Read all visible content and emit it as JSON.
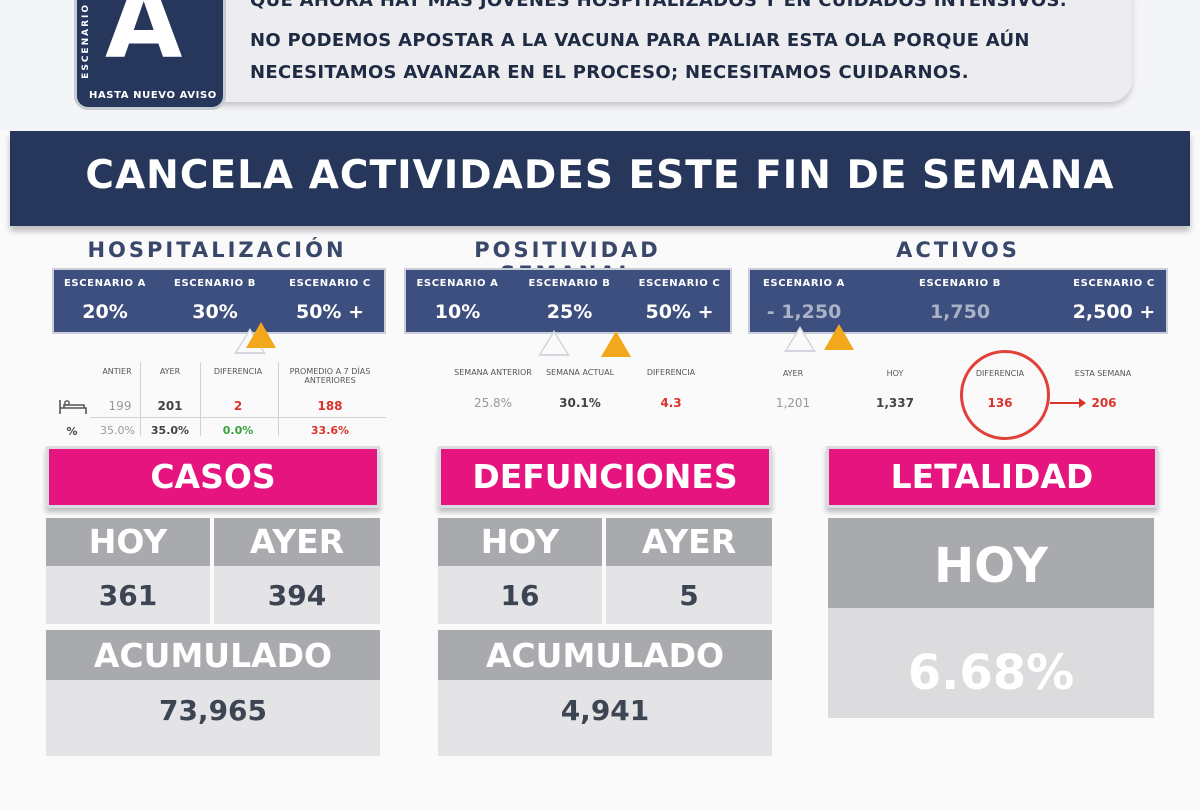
{
  "header": {
    "line1": "QUE AHORA HAY MÁS JÓVENES HOSPITALIZADOS Y EN CUIDADOS INTENSIVOS.",
    "line2": "NO PODEMOS APOSTAR A LA VACUNA PARA PALIAR ESTA OLA PORQUE AÚN",
    "line3": "NECESITAMOS AVANZAR EN EL PROCESO; NECESITAMOS CUIDARNOS."
  },
  "badge": {
    "vertical": "ESCENARIO",
    "letter": "A",
    "footer": "HASTA NUEVO AVISO"
  },
  "banner": "CANCELA ACTIVIDADES ESTE FIN DE SEMANA",
  "hosp": {
    "title": "HOSPITALIZACIÓN",
    "scenarios": [
      {
        "label": "ESCENARIO A",
        "value": "20%"
      },
      {
        "label": "ESCENARIO B",
        "value": "30%"
      },
      {
        "label": "ESCENARIO C",
        "value": "50% +"
      }
    ],
    "cols": [
      "ANTIER",
      "AYER",
      "DIFERENCIA",
      "PROMEDIO A 7 DÍAS ANTERIORES"
    ],
    "row1": [
      "199",
      "201",
      "2",
      "188"
    ],
    "row2_label": "%",
    "row2": [
      "35.0%",
      "35.0%",
      "0.0%",
      "33.6%"
    ]
  },
  "pos": {
    "title": "POSITIVIDAD SEMANAL",
    "scenarios": [
      {
        "label": "ESCENARIO A",
        "value": "10%"
      },
      {
        "label": "ESCENARIO B",
        "value": "25%"
      },
      {
        "label": "ESCENARIO C",
        "value": "50% +"
      }
    ],
    "cols": [
      "SEMANA ANTERIOR",
      "SEMANA ACTUAL",
      "DIFERENCIA"
    ],
    "values": [
      "25.8%",
      "30.1%",
      "4.3"
    ]
  },
  "act": {
    "title": "ACTIVOS",
    "scenarios": [
      {
        "label": "ESCENARIO A",
        "value": "- 1,250"
      },
      {
        "label": "ESCENARIO B",
        "value": "1,750"
      },
      {
        "label": "ESCENARIO C",
        "value": "2,500 +"
      }
    ],
    "cols": [
      "AYER",
      "HOY",
      "DIFERENCIA",
      "ESTA SEMANA"
    ],
    "values": [
      "1,201",
      "1,337",
      "136",
      "206"
    ]
  },
  "casos": {
    "title": "CASOS",
    "hoy_label": "HOY",
    "ayer_label": "AYER",
    "hoy": "361",
    "ayer": "394",
    "acum_label": "ACUMULADO",
    "acum": "73,965"
  },
  "def": {
    "title": "DEFUNCIONES",
    "hoy_label": "HOY",
    "ayer_label": "AYER",
    "hoy": "16",
    "ayer": "5",
    "acum_label": "ACUMULADO",
    "acum": "4,941"
  },
  "let": {
    "title": "LETALIDAD",
    "hoy_label": "HOY",
    "value": "6.68%"
  },
  "colors": {
    "navy": "#27375c",
    "panel": "#3d4f7e",
    "magenta": "#e6147e",
    "gray": "#a9aaad",
    "light": "#e4e4e6",
    "warning": "#f3a81b",
    "red": "#d9342b"
  }
}
